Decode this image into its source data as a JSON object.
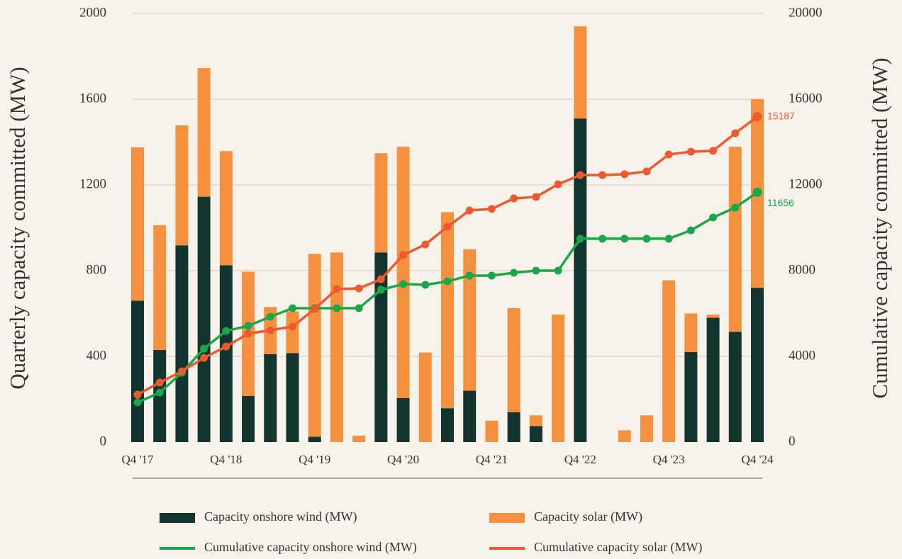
{
  "chart_data": {
    "type": "bar",
    "stacked": true,
    "categories": [
      "Q4 '17",
      null,
      null,
      null,
      "Q4 '18",
      null,
      null,
      null,
      "Q4 '19",
      null,
      null,
      null,
      "Q4 '20",
      null,
      null,
      null,
      "Q4 '21",
      null,
      null,
      null,
      "Q4 '22",
      null,
      null,
      null,
      "Q4 '23",
      null,
      null,
      null,
      "Q4 '24"
    ],
    "ylabel": "Quarterly capacity committed (MW)",
    "y2label": "Cumulative capacity committed (MW)",
    "ylim": [
      0,
      2000
    ],
    "yticks": [
      0,
      400,
      800,
      1200,
      1600,
      2000
    ],
    "y2lim": [
      0,
      20000
    ],
    "y2ticks": [
      0,
      4000,
      8000,
      12000,
      16000,
      20000
    ],
    "grid": true,
    "legend": "bottom",
    "series": [
      {
        "name": "Capacity onshore wind (MW)",
        "type": "bar",
        "color": "#12352f",
        "values": [
          660,
          430,
          918,
          1145,
          825,
          215,
          410,
          415,
          25,
          0,
          0,
          885,
          205,
          0,
          158,
          240,
          0,
          140,
          75,
          0,
          1510,
          0,
          0,
          0,
          0,
          420,
          580,
          515,
          720
        ]
      },
      {
        "name": "Capacity solar (MW)",
        "type": "bar",
        "color": "#f5913e",
        "values": [
          715,
          582,
          560,
          600,
          533,
          580,
          220,
          195,
          853,
          885,
          30,
          463,
          1173,
          418,
          915,
          660,
          100,
          485,
          50,
          595,
          430,
          0,
          55,
          125,
          755,
          180,
          15,
          863,
          880
        ]
      },
      {
        "name": "Cumulative capacity onshore wind (MW)",
        "type": "line",
        "axis": "y2",
        "color": "#1aa64a",
        "values": [
          1850,
          2310,
          3240,
          4360,
          5190,
          5420,
          5850,
          6250,
          6250,
          6250,
          6250,
          7110,
          7370,
          7340,
          7500,
          7770,
          7770,
          7900,
          8000,
          8000,
          9490,
          9490,
          9490,
          9490,
          9490,
          9880,
          10480,
          10940,
          11656
        ]
      },
      {
        "name": "Cumulative capacity solar (MW)",
        "type": "line",
        "axis": "y2",
        "color": "#ee5a2f",
        "values": [
          2215,
          2780,
          3300,
          3930,
          4460,
          5060,
          5220,
          5390,
          6210,
          7140,
          7170,
          7600,
          8730,
          9220,
          10050,
          10810,
          10880,
          11370,
          11440,
          12030,
          12460,
          12460,
          12500,
          12630,
          13420,
          13550,
          13590,
          14410,
          15187
        ]
      }
    ]
  }
}
